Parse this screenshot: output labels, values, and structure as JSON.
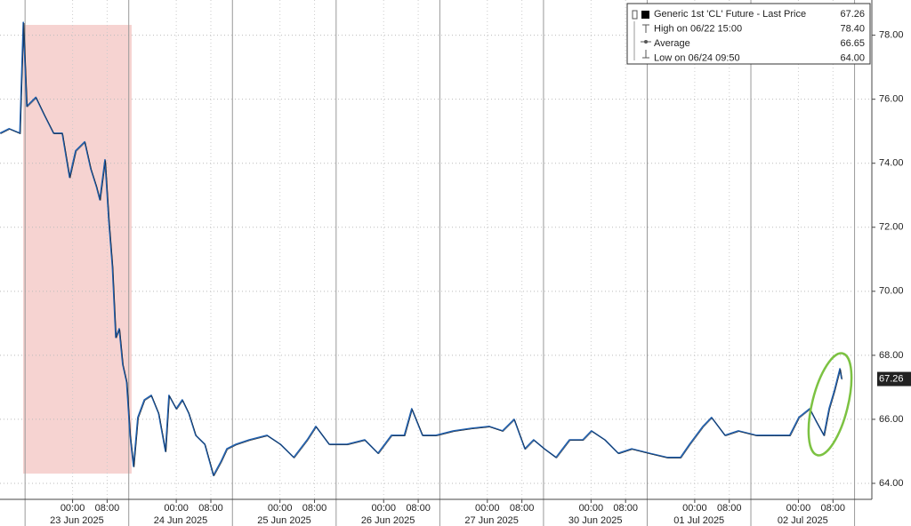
{
  "chart_data": {
    "type": "line",
    "legend": [
      {
        "label": "Generic 1st 'CL' Future - Last Price",
        "value": 67.26
      },
      {
        "label": "High on 06/22 15:00",
        "value": {
          "value": 78.4,
          "label": "78.40"
        }
      },
      {
        "label": "Average",
        "value": 66.65
      },
      {
        "label": "Low on 06/24 09:50",
        "value": {
          "value": 64,
          "label": "64.00"
        }
      }
    ],
    "x": [
      -5.8,
      -3.7,
      -1.2,
      -0.4,
      0.4,
      2.5,
      4.5,
      6.6,
      8.6,
      10.3,
      11.7,
      13.8,
      15.2,
      16.5,
      17.3,
      18.5,
      19.4,
      20.2,
      21.0,
      21.8,
      22.6,
      23.5,
      24.3,
      25.1,
      26.1,
      27.6,
      29.2,
      30.9,
      32.5,
      33.3,
      35.0,
      36.4,
      37.9,
      39.5,
      41.6,
      43.6,
      45.3,
      46.7,
      48.8,
      51.9,
      56.0,
      59.1,
      62.2,
      65.3,
      67.3,
      70.4,
      74.5,
      78.6,
      81.7,
      84.8,
      87.8,
      89.5,
      92.0,
      95.1,
      99.2,
      103.3,
      107.4,
      110.5,
      113.2,
      115.7,
      117.7,
      120.2,
      122.9,
      126.0,
      129.1,
      131.1,
      134.2,
      137.3,
      140.4,
      144.5,
      148.6,
      151.7,
      153.8,
      156.9,
      158.9,
      162.0,
      165.1,
      169.2,
      173.3,
      177.0,
      179.1,
      181.6,
      183.2,
      184.9,
      186.1,
      187.3,
      188.6,
      189.0
    ],
    "series": [
      {
        "color": "#1f5fae",
        "values": [
          74.94,
          75.08,
          74.94,
          78.4,
          75.78,
          76.06,
          75.5,
          74.94,
          74.94,
          73.56,
          74.39,
          74.67,
          73.83,
          73.28,
          72.86,
          74.11,
          72.17,
          70.78,
          68.56,
          68.83,
          67.72,
          67.17,
          65.5,
          64.53,
          66.06,
          66.61,
          66.75,
          66.19,
          65.0,
          66.75,
          66.33,
          66.61,
          66.19,
          65.5,
          65.22,
          64.25,
          64.67,
          65.08,
          65.22,
          65.36,
          65.5,
          65.22,
          64.81,
          65.36,
          65.78,
          65.22,
          65.22,
          65.36,
          64.94,
          65.5,
          65.5,
          66.33,
          65.5,
          65.5,
          65.64,
          65.72,
          65.78,
          65.64,
          66.0,
          65.08,
          65.36,
          65.08,
          64.81,
          65.36,
          65.36,
          65.64,
          65.36,
          64.94,
          65.08,
          64.94,
          64.81,
          64.81,
          65.22,
          65.78,
          66.06,
          65.5,
          65.64,
          65.5,
          65.5,
          65.5,
          66.06,
          66.33,
          65.92,
          65.5,
          66.33,
          66.89,
          67.58,
          67.26
        ]
      }
    ],
    "xlim": [
      -5.8,
      196
    ],
    "ylim": [
      63.5,
      79.1
    ],
    "yticks": [
      {
        "value": 64,
        "label": "64.00"
      },
      {
        "value": 66,
        "label": "66.00"
      },
      {
        "value": 68,
        "label": "68.00"
      },
      {
        "value": 70,
        "label": "70.00"
      },
      {
        "value": 72,
        "label": "72.00"
      },
      {
        "value": 74,
        "label": "74.00"
      },
      {
        "value": 76,
        "label": "76.00"
      },
      {
        "value": 78,
        "label": "78.00"
      }
    ],
    "xticks": [
      {
        "value": 11,
        "label": "00:00"
      },
      {
        "value": 19,
        "label": "08:00"
      },
      {
        "value": 35,
        "label": "00:00"
      },
      {
        "value": 43,
        "label": "08:00"
      },
      {
        "value": 59,
        "label": "00:00"
      },
      {
        "value": 67,
        "label": "08:00"
      },
      {
        "value": 83,
        "label": "00:00"
      },
      {
        "value": 91,
        "label": "08:00"
      },
      {
        "value": 107,
        "label": "00:00"
      },
      {
        "value": 115,
        "label": "08:00"
      },
      {
        "value": 131,
        "label": "00:00"
      },
      {
        "value": 139,
        "label": "08:00"
      },
      {
        "value": 155,
        "label": "00:00"
      },
      {
        "value": 163,
        "label": "08:00"
      },
      {
        "value": 179,
        "label": "00:00"
      },
      {
        "value": 187,
        "label": "08:00"
      }
    ],
    "date_ticks": [
      {
        "value": 12,
        "label": "23 Jun 2025"
      },
      {
        "value": 36,
        "label": "24 Jun 2025"
      },
      {
        "value": 60,
        "label": "25 Jun 2025"
      },
      {
        "value": 84,
        "label": "26 Jun 2025"
      },
      {
        "value": 108,
        "label": "27 Jun 2025"
      },
      {
        "value": 132,
        "label": "30 Jun 2025"
      },
      {
        "value": 156,
        "label": "01 Jul 2025"
      },
      {
        "value": 180,
        "label": "02 Jul 2025"
      }
    ],
    "day_boundaries": [
      0,
      24,
      48,
      72,
      96,
      120,
      144,
      168,
      192
    ],
    "grid": true
  }
}
